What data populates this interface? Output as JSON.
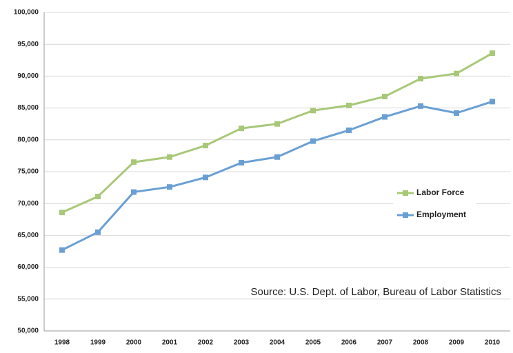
{
  "chart_data": {
    "type": "line",
    "categories": [
      "1998",
      "1999",
      "2000",
      "2001",
      "2002",
      "2003",
      "2004",
      "2005",
      "2006",
      "2007",
      "2008",
      "2009",
      "2010"
    ],
    "series": [
      {
        "name": "Labor Force",
        "color": "#a8c878",
        "values": [
          68600,
          71100,
          76500,
          77300,
          79100,
          81800,
          82500,
          84600,
          85400,
          86800,
          89600,
          90400,
          93600
        ]
      },
      {
        "name": "Employment",
        "color": "#6a9fd4",
        "values": [
          62700,
          65500,
          71800,
          72600,
          74100,
          76400,
          77300,
          79800,
          81500,
          83600,
          85300,
          84200,
          86000
        ]
      }
    ],
    "ylim": [
      50000,
      100000
    ],
    "yticks": [
      {
        "value": 50000,
        "label": "50,000"
      },
      {
        "value": 55000,
        "label": "55,000"
      },
      {
        "value": 60000,
        "label": "60,000"
      },
      {
        "value": 65000,
        "label": "65,000"
      },
      {
        "value": 70000,
        "label": "70,000"
      },
      {
        "value": 75000,
        "label": "75,000"
      },
      {
        "value": 80000,
        "label": "80,000"
      },
      {
        "value": 85000,
        "label": "85,000"
      },
      {
        "value": 90000,
        "label": "90,000"
      },
      {
        "value": 95000,
        "label": "95,000"
      },
      {
        "value": 100000,
        "label": "100,000"
      }
    ],
    "grid": true,
    "annotation": "Source: U.S. Dept. of Labor, Bureau of Labor Statistics"
  }
}
